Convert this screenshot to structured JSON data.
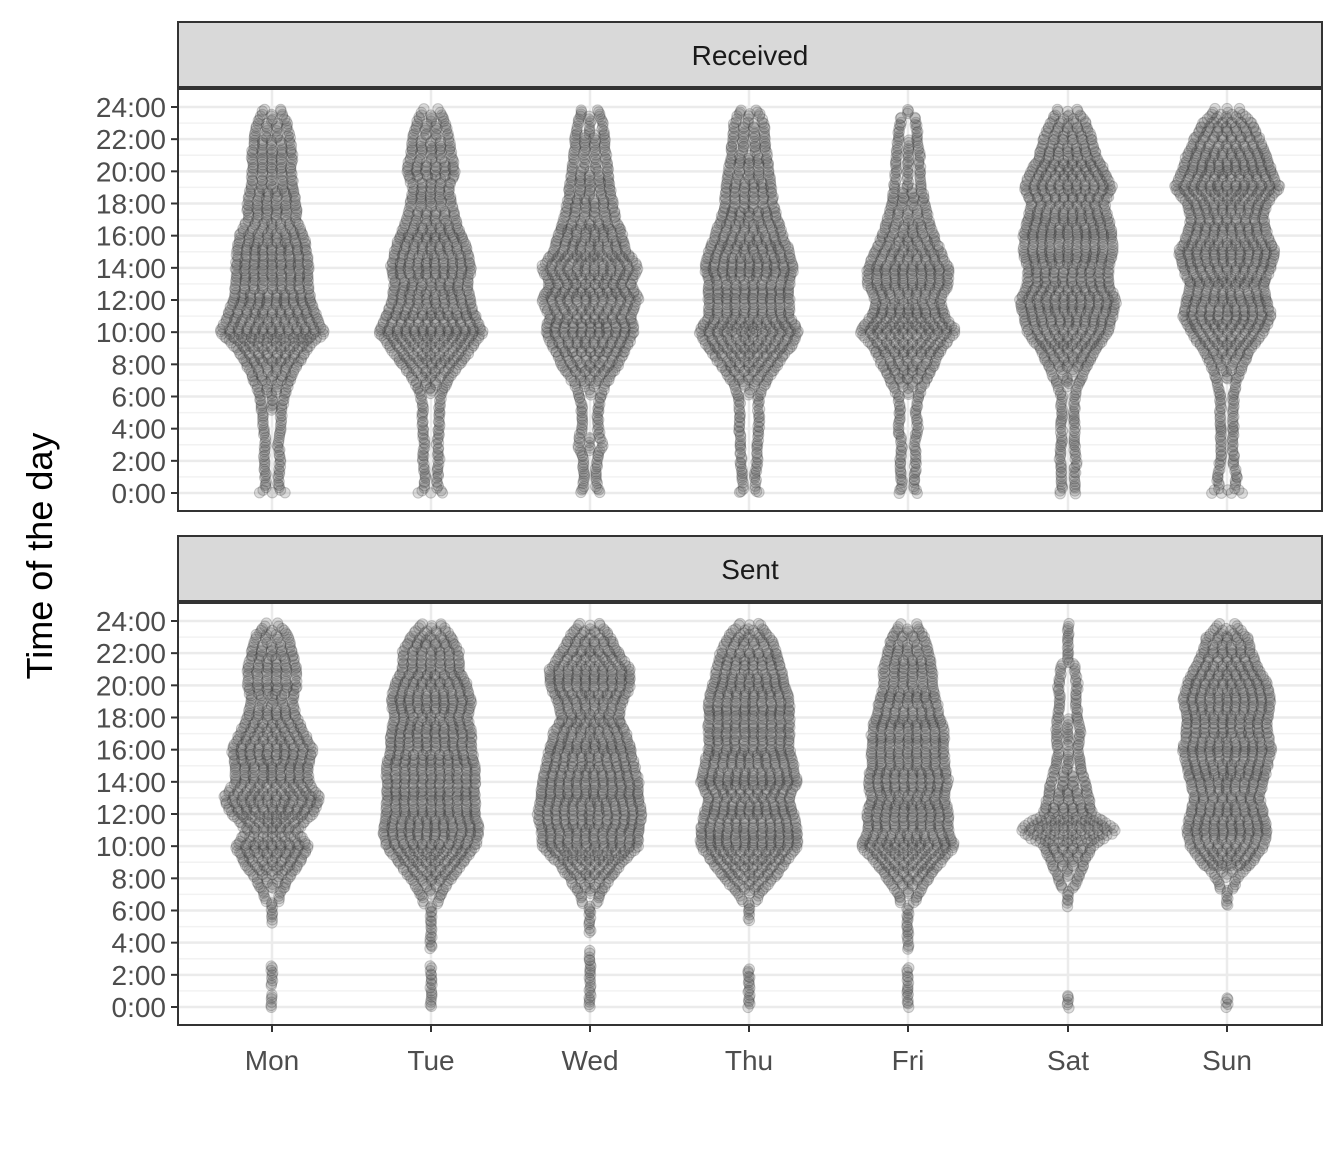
{
  "chart_data": {
    "type": "scatter",
    "subtype": "beeswarm-faceted",
    "ylabel": "Time of the day",
    "xlabel": "",
    "categories": [
      "Mon",
      "Tue",
      "Wed",
      "Thu",
      "Fri",
      "Sat",
      "Sun"
    ],
    "y_ticks": [
      "0:00",
      "2:00",
      "4:00",
      "6:00",
      "8:00",
      "10:00",
      "12:00",
      "14:00",
      "16:00",
      "18:00",
      "20:00",
      "22:00",
      "24:00"
    ],
    "ylim": [
      0,
      24
    ],
    "grid": true,
    "legend": "none",
    "colors": {
      "point_fill": "#5a5a5a",
      "panel_border": "#333333",
      "strip_fill": "#d9d9d9",
      "grid": "#ebebeb"
    },
    "facets": [
      {
        "label": "Received",
        "point_opacity": 0.2,
        "profile_hours": [
          0,
          0.3,
          1,
          2,
          3,
          4,
          5,
          6,
          7,
          8,
          9,
          10,
          11,
          12,
          13,
          14,
          15,
          16,
          17,
          18,
          19,
          20,
          21,
          22,
          23,
          23.8
        ],
        "series": [
          {
            "name": "Mon",
            "width": [
              0.15,
              0.08,
              0.08,
              0.1,
              0.08,
              0.1,
              0.12,
              0.15,
              0.22,
              0.32,
              0.45,
              0.65,
              0.55,
              0.48,
              0.45,
              0.45,
              0.43,
              0.4,
              0.3,
              0.3,
              0.26,
              0.24,
              0.25,
              0.22,
              0.18,
              0.1
            ]
          },
          {
            "name": "Tue",
            "width": [
              0.15,
              0.08,
              0.08,
              0.1,
              0.08,
              0.1,
              0.1,
              0.12,
              0.2,
              0.35,
              0.5,
              0.65,
              0.55,
              0.48,
              0.45,
              0.5,
              0.45,
              0.38,
              0.3,
              0.25,
              0.22,
              0.3,
              0.25,
              0.22,
              0.18,
              0.1
            ]
          },
          {
            "name": "Wed",
            "width": [
              0.12,
              0.08,
              0.08,
              0.08,
              0.15,
              0.1,
              0.1,
              0.12,
              0.22,
              0.35,
              0.45,
              0.55,
              0.5,
              0.6,
              0.5,
              0.6,
              0.45,
              0.4,
              0.32,
              0.28,
              0.25,
              0.22,
              0.2,
              0.18,
              0.15,
              0.1
            ]
          },
          {
            "name": "Thu",
            "width": [
              0.12,
              0.08,
              0.08,
              0.1,
              0.1,
              0.12,
              0.12,
              0.12,
              0.22,
              0.35,
              0.5,
              0.62,
              0.5,
              0.5,
              0.5,
              0.55,
              0.5,
              0.42,
              0.35,
              0.3,
              0.28,
              0.25,
              0.22,
              0.2,
              0.18,
              0.1
            ]
          },
          {
            "name": "Fri",
            "width": [
              0.12,
              0.08,
              0.08,
              0.1,
              0.08,
              0.12,
              0.1,
              0.12,
              0.22,
              0.32,
              0.42,
              0.6,
              0.45,
              0.4,
              0.5,
              0.5,
              0.4,
              0.32,
              0.25,
              0.2,
              0.17,
              0.15,
              0.14,
              0.12,
              0.1,
              0.06
            ]
          },
          {
            "name": "Sat",
            "width": [
              0.1,
              0.08,
              0.08,
              0.1,
              0.08,
              0.08,
              0.08,
              0.08,
              0.15,
              0.25,
              0.35,
              0.5,
              0.55,
              0.6,
              0.5,
              0.5,
              0.55,
              0.55,
              0.5,
              0.45,
              0.55,
              0.45,
              0.35,
              0.3,
              0.22,
              0.12
            ]
          },
          {
            "name": "Sun",
            "width": [
              0.2,
              0.1,
              0.12,
              0.08,
              0.08,
              0.08,
              0.08,
              0.08,
              0.12,
              0.2,
              0.3,
              0.45,
              0.55,
              0.5,
              0.45,
              0.55,
              0.6,
              0.5,
              0.45,
              0.5,
              0.65,
              0.55,
              0.5,
              0.4,
              0.3,
              0.15
            ]
          }
        ]
      },
      {
        "label": "Sent",
        "point_opacity": 0.2,
        "profile_hours": [
          0,
          0.3,
          1,
          2,
          3,
          4,
          5,
          6,
          7,
          8,
          9,
          10,
          11,
          12,
          13,
          14,
          15,
          16,
          17,
          18,
          19,
          20,
          21,
          22,
          23,
          23.8
        ],
        "series": [
          {
            "name": "Mon",
            "width": [
              0.05,
              0.05,
              0,
              0.03,
              0,
              0,
              0,
              0.05,
              0.1,
              0.2,
              0.35,
              0.45,
              0.3,
              0.5,
              0.6,
              0.45,
              0.45,
              0.5,
              0.4,
              0.3,
              0.25,
              0.3,
              0.3,
              0.25,
              0.2,
              0.08
            ]
          },
          {
            "name": "Tue",
            "width": [
              0.05,
              0.05,
              0.03,
              0.03,
              0,
              0.02,
              0.02,
              0.05,
              0.12,
              0.25,
              0.4,
              0.55,
              0.6,
              0.55,
              0.55,
              0.55,
              0.55,
              0.5,
              0.5,
              0.45,
              0.5,
              0.45,
              0.35,
              0.35,
              0.25,
              0.12
            ]
          },
          {
            "name": "Wed",
            "width": [
              0.05,
              0.05,
              0.03,
              0.03,
              0.02,
              0,
              0.02,
              0.05,
              0.12,
              0.25,
              0.4,
              0.6,
              0.6,
              0.65,
              0.6,
              0.6,
              0.55,
              0.5,
              0.45,
              0.35,
              0.4,
              0.5,
              0.5,
              0.35,
              0.25,
              0.12
            ]
          },
          {
            "name": "Thu",
            "width": [
              0.05,
              0.05,
              0.03,
              0.02,
              0,
              0,
              0,
              0.03,
              0.12,
              0.3,
              0.45,
              0.6,
              0.6,
              0.55,
              0.5,
              0.6,
              0.55,
              0.5,
              0.5,
              0.5,
              0.5,
              0.45,
              0.4,
              0.35,
              0.25,
              0.12
            ]
          },
          {
            "name": "Fri",
            "width": [
              0.05,
              0.05,
              0.03,
              0.02,
              0,
              0.02,
              0.02,
              0.05,
              0.12,
              0.25,
              0.4,
              0.58,
              0.5,
              0.5,
              0.45,
              0.5,
              0.45,
              0.45,
              0.45,
              0.4,
              0.35,
              0.3,
              0.3,
              0.25,
              0.2,
              0.1
            ]
          },
          {
            "name": "Sat",
            "width": [
              0.03,
              0.03,
              0,
              0,
              0,
              0,
              0,
              0,
              0.05,
              0.12,
              0.2,
              0.3,
              0.6,
              0.3,
              0.25,
              0.2,
              0.15,
              0.12,
              0.15,
              0.12,
              0.1,
              0.12,
              0.08,
              0.06,
              0.05,
              0.03
            ]
          },
          {
            "name": "Sun",
            "width": [
              0.02,
              0.02,
              0,
              0,
              0,
              0,
              0,
              0,
              0.05,
              0.12,
              0.3,
              0.45,
              0.5,
              0.45,
              0.4,
              0.45,
              0.5,
              0.55,
              0.5,
              0.5,
              0.55,
              0.5,
              0.4,
              0.3,
              0.25,
              0.1
            ]
          }
        ]
      }
    ]
  }
}
